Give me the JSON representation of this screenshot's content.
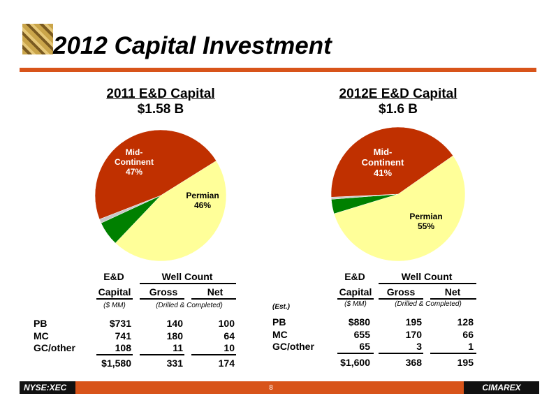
{
  "page": {
    "title": "2012 Capital Investment",
    "footer_left": "NYSE:XEC",
    "footer_right": "CIMAREX",
    "page_number": "8"
  },
  "colors": {
    "accent": "#d8541a",
    "mid_continent": "#c03000",
    "permian": "#ffff99",
    "gulf_coast": "#008000",
    "other": "#c8c8c8"
  },
  "chart_data": [
    {
      "type": "pie",
      "title": "2011 E&D Capital",
      "subtitle": "$1.58 B",
      "slices": [
        {
          "label": "Mid-Continent",
          "value": 47,
          "display": "47%",
          "label_lines": [
            "Mid-",
            "Continent",
            "47%"
          ]
        },
        {
          "label": "Permian",
          "value": 46,
          "display": "46%",
          "label_lines": [
            "Permian",
            "46%"
          ]
        },
        {
          "label": "",
          "value": 6,
          "display": ""
        },
        {
          "label": "",
          "value": 1,
          "display": ""
        }
      ]
    },
    {
      "type": "pie",
      "title": "2012E E&D Capital",
      "subtitle": "$1.6 B",
      "slices": [
        {
          "label": "Mid-Continent",
          "value": 41,
          "display": "41%",
          "label_lines": [
            "Mid-",
            "Continent",
            "41%"
          ]
        },
        {
          "label": "Permian",
          "value": 55,
          "display": "55%",
          "label_lines": [
            "Permian",
            "55%"
          ]
        },
        {
          "label": "",
          "value": 3.5,
          "display": ""
        },
        {
          "label": "",
          "value": 0.5,
          "display": ""
        }
      ]
    }
  ],
  "tables": [
    {
      "header_ed": "E&D",
      "header_well_count": "Well Count",
      "header_capital": "Capital",
      "header_gross": "Gross",
      "header_net": "Net",
      "unit_capital": "($ MM)",
      "unit_wells": "(Drilled & Completed)",
      "est_note": "",
      "rows": [
        {
          "label": "PB",
          "capital": "$731",
          "gross": "140",
          "net": "100"
        },
        {
          "label": "MC",
          "capital": "741",
          "gross": "180",
          "net": "64"
        },
        {
          "label": "GC/other",
          "capital": "108",
          "gross": "11",
          "net": "10"
        }
      ],
      "total": {
        "capital": "$1,580",
        "gross": "331",
        "net": "174"
      }
    },
    {
      "header_ed": "E&D",
      "header_well_count": "Well Count",
      "header_capital": "Capital",
      "header_gross": "Gross",
      "header_net": "Net",
      "unit_capital": "($ MM)",
      "unit_wells": "(Drilled & Completed)",
      "est_note": "(Est.)",
      "rows": [
        {
          "label": "PB",
          "capital": "$880",
          "gross": "195",
          "net": "128"
        },
        {
          "label": "MC",
          "capital": "655",
          "gross": "170",
          "net": "66"
        },
        {
          "label": "GC/other",
          "capital": "65",
          "gross": "3",
          "net": "1"
        }
      ],
      "total": {
        "capital": "$1,600",
        "gross": "368",
        "net": "195"
      }
    }
  ]
}
